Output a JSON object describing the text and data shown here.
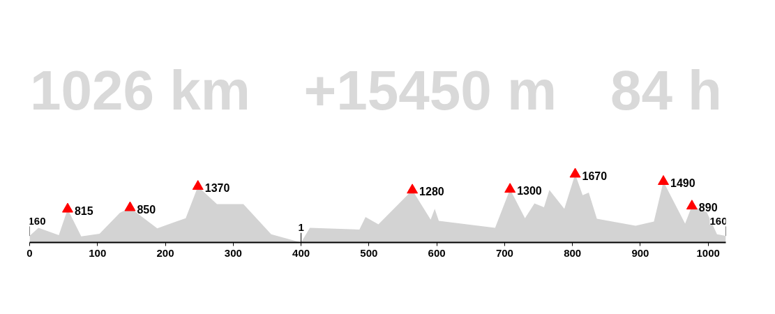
{
  "chart_data": {
    "type": "area",
    "x": [
      0,
      13,
      43,
      56,
      76,
      103,
      133,
      148,
      188,
      230,
      248,
      276,
      315,
      356,
      400,
      413,
      486,
      495,
      514,
      564,
      591,
      597,
      603,
      686,
      708,
      730,
      744,
      758,
      766,
      788,
      804,
      815,
      824,
      836,
      893,
      920,
      934,
      966,
      976,
      998,
      1013,
      1026
    ],
    "series": [
      {
        "color": "#d3d3d3",
        "values": [
          160,
          360,
          180,
          815,
          150,
          215,
          725,
          850,
          345,
          595,
          1370,
          940,
          940,
          200,
          1,
          360,
          315,
          625,
          445,
          1280,
          560,
          825,
          530,
          360,
          1300,
          595,
          955,
          860,
          1285,
          825,
          1670,
          1155,
          1220,
          580,
          410,
          510,
          1490,
          460,
          890,
          740,
          200,
          160
        ]
      },
      {
        "type": "scatter",
        "marker": "triangle",
        "color": "#ff0000",
        "data_labels": true,
        "x": [
          56,
          148,
          248,
          564,
          708,
          804,
          934,
          976
        ],
        "values": [
          815,
          850,
          1370,
          1280,
          1300,
          1670,
          1490,
          890
        ]
      }
    ],
    "annotations": [
      "1026 km",
      "+15450 m",
      "84 h",
      {
        "text": "160",
        "x": 0,
        "y": 160
      },
      {
        "text": "1",
        "x": 400,
        "y": 1
      },
      {
        "text": "160",
        "x": 1026,
        "y": 160
      }
    ],
    "xlim": [
      0,
      1026
    ],
    "xticks": [
      0,
      100,
      200,
      300,
      400,
      500,
      600,
      700,
      800,
      900,
      1000
    ],
    "tick_labels": "x",
    "grid": false
  }
}
